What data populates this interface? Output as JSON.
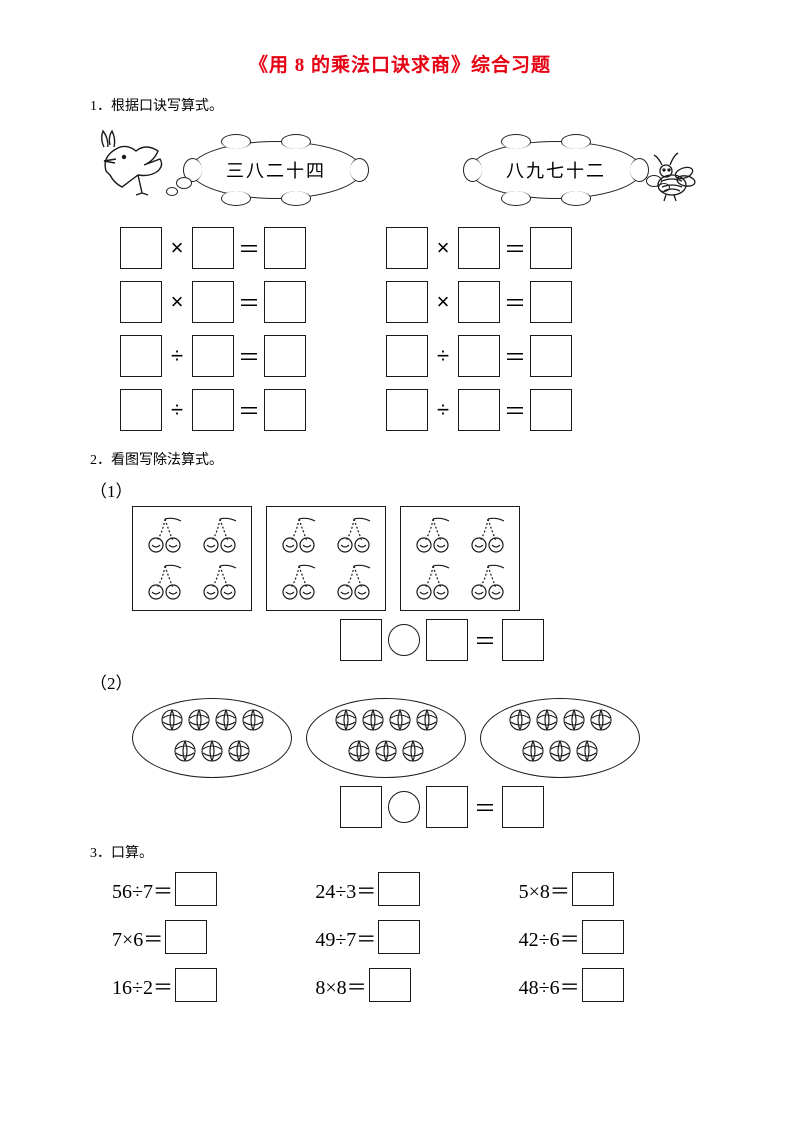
{
  "title": "《用 8 的乘法口诀求商》综合习题",
  "q1_label": "1．根据口诀写算式。",
  "q2_label": "2．看图写除法算式。",
  "q3_label": "3．口算。",
  "bubble_left": "三八二十四",
  "bubble_right": "八九七十二",
  "sub1": "（1）",
  "sub2": "（2）",
  "ops": {
    "times": "×",
    "div": "÷",
    "eq": "＝"
  },
  "cherry_groups": 3,
  "cherries_per_group": 4,
  "ball_groups": 3,
  "balls_per_group": 7,
  "calc": [
    "56÷7＝",
    "24÷3＝",
    "5×8＝",
    "7×6＝",
    "49÷7＝",
    "42÷6＝",
    "16÷2＝",
    "8×8＝",
    "48÷6＝"
  ],
  "colors": {
    "title": "#e60012",
    "text": "#000000",
    "border": "#1a1a1a",
    "background": "#ffffff"
  }
}
